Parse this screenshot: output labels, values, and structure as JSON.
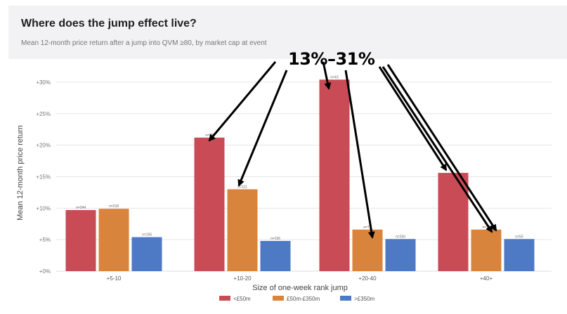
{
  "header": {
    "title": "Where does the jump effect live?",
    "subtitle": "Mean 12-month price return after a jump into QVM ≥80, by market cap at event"
  },
  "annotation": {
    "text": "13%–31%"
  },
  "colors": {
    "small": "#c84b55",
    "mid": "#d9843c",
    "large": "#4e79c4"
  },
  "chart_data": {
    "type": "bar",
    "title": "Where does the jump effect live?",
    "subtitle": "Mean 12-month price return after a jump into QVM ≥80, by market cap at event",
    "xlabel": "Size of one-week rank jump",
    "ylabel": "Mean 12-month price return",
    "categories": [
      "+5-10",
      "+10-20",
      "+20-40",
      "+40+"
    ],
    "ylim": [
      0,
      31
    ],
    "yticks": [
      0,
      5,
      10,
      15,
      20,
      25,
      30
    ],
    "ytick_labels": [
      "+0%",
      "+5%",
      "+10%",
      "+15%",
      "+20%",
      "+25%",
      "+30%"
    ],
    "series": [
      {
        "name": "<£50m",
        "values": [
          9.7,
          21.2,
          30.4,
          15.6
        ],
        "n_labels": [
          "n=344",
          "n=88",
          "n=43",
          ""
        ]
      },
      {
        "name": "£50m-£350m",
        "values": [
          9.9,
          13.0,
          6.6,
          6.6
        ],
        "n_labels": [
          "n=218",
          "n=111",
          "n=77",
          "n=77"
        ]
      },
      {
        "name": ">£350m",
        "values": [
          5.4,
          4.8,
          5.1,
          5.1
        ],
        "n_labels": [
          "n=156",
          "n=156",
          "n=250",
          "n=55"
        ]
      }
    ],
    "grid": true,
    "legend": "bottom"
  }
}
